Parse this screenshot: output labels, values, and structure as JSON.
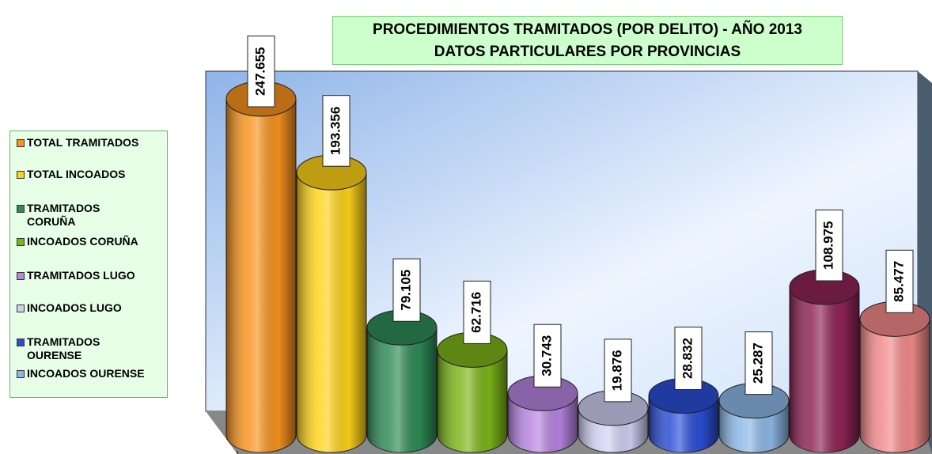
{
  "chart_data": {
    "type": "bar",
    "title": "PROCEDIMIENTOS TRAMITADOS  (POR DELITO) - AÑO 2013",
    "subtitle": "DATOS PARTICULARES POR PROVINCIAS",
    "categories": [
      "TOTAL TRAMITADOS",
      "TOTAL INCOADOS",
      "TRAMITADOS CORUÑA",
      "INCOADOS CORUÑA",
      "TRAMITADOS LUGO",
      "INCOADOS LUGO",
      "TRAMITADOS OURENSE",
      "INCOADOS OURENSE",
      null,
      null
    ],
    "values": [
      247655,
      193356,
      79105,
      62716,
      30743,
      19876,
      28832,
      25287,
      108975,
      85477
    ],
    "value_labels": [
      "247.655",
      "193.356",
      "79.105",
      "62.716",
      "30.743",
      "19.876",
      "28.832",
      "25.287",
      "108.975",
      "85.477"
    ],
    "colors": [
      "#f7931e",
      "#ffd21a",
      "#2e8b57",
      "#7cb518",
      "#b784e0",
      "#cfcff2",
      "#2b4fd6",
      "#8cb8e6",
      "#8e2456",
      "#f28a8a"
    ]
  }
}
